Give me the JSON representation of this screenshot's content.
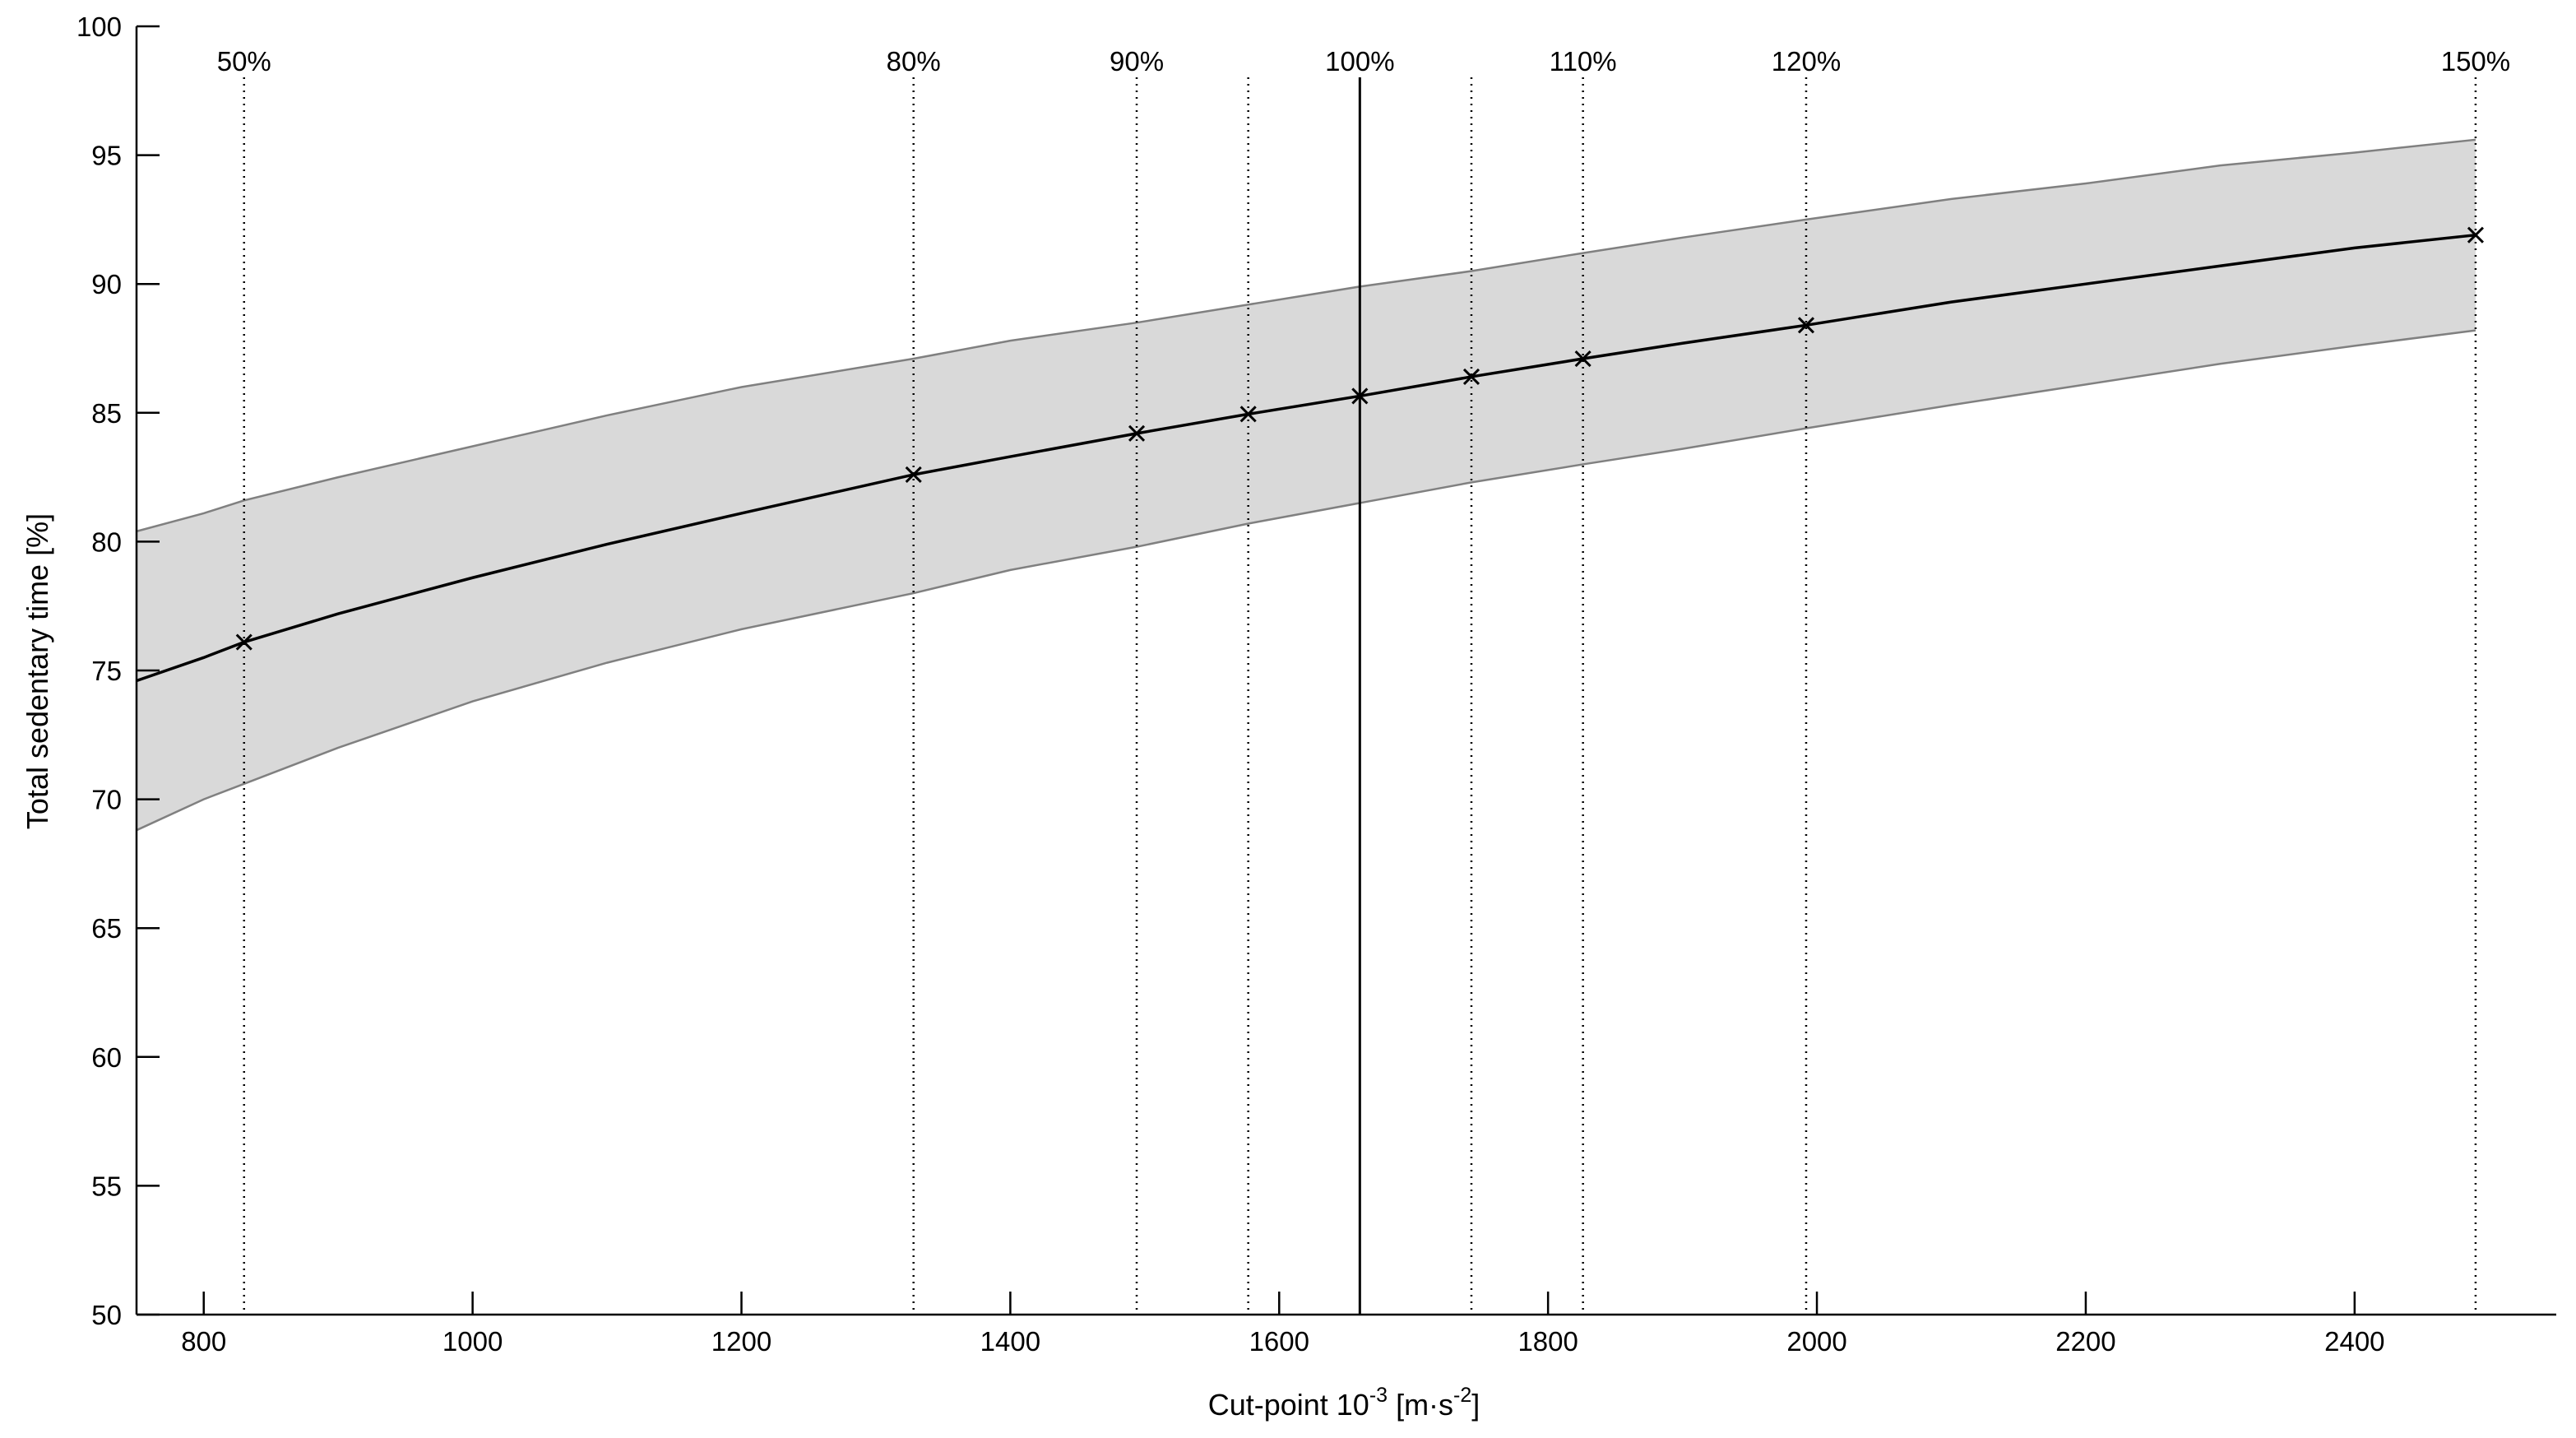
{
  "chart_data": {
    "type": "line",
    "xlabel": "Cut-point 10",
    "xlabel_exponent": "-3",
    "xlabel_units_a": " [m·s",
    "xlabel_units_exponent": "-2",
    "xlabel_units_b": "]",
    "ylabel": "Total sedentary time [%]",
    "xlim": [
      750,
      2550
    ],
    "ylim": [
      50,
      100
    ],
    "xticks": [
      800,
      1000,
      1200,
      1400,
      1600,
      1800,
      2000,
      2200,
      2400
    ],
    "yticks": [
      50,
      55,
      60,
      65,
      70,
      75,
      80,
      85,
      90,
      95,
      100
    ],
    "grid": false,
    "legend": "none",
    "colors": {
      "line": "#000000",
      "band_fill": "#d9d9d9",
      "band_edge": "#808080"
    },
    "reference_line": {
      "x": 1660,
      "style": "solid"
    },
    "vertical_lines": [
      {
        "x": 830,
        "label": "50%"
      },
      {
        "x": 1328,
        "label": "80%"
      },
      {
        "x": 1494,
        "label": "90%"
      },
      {
        "x": 1577,
        "label": ""
      },
      {
        "x": 1743,
        "label": ""
      },
      {
        "x": 1826,
        "label": "110%"
      },
      {
        "x": 1992,
        "label": "120%"
      },
      {
        "x": 2490,
        "label": "150%"
      }
    ],
    "reference_label": "100%",
    "marked_points": [
      {
        "x": 830,
        "y": 76.1
      },
      {
        "x": 1328,
        "y": 82.6
      },
      {
        "x": 1494,
        "y": 84.2
      },
      {
        "x": 1577,
        "y": 84.95
      },
      {
        "x": 1660,
        "y": 85.65
      },
      {
        "x": 1743,
        "y": 86.4
      },
      {
        "x": 1826,
        "y": 87.1
      },
      {
        "x": 1992,
        "y": 88.4
      },
      {
        "x": 2490,
        "y": 91.9
      }
    ],
    "series": [
      {
        "x": [
          750,
          800,
          830,
          900,
          1000,
          1100,
          1200,
          1328,
          1400,
          1494,
          1577,
          1660,
          1743,
          1826,
          1900,
          1992,
          2100,
          2200,
          2300,
          2400,
          2490
        ],
        "y": [
          74.6,
          75.5,
          76.1,
          77.2,
          78.6,
          79.9,
          81.1,
          82.6,
          83.3,
          84.2,
          84.95,
          85.65,
          86.4,
          87.1,
          87.7,
          88.4,
          89.3,
          90.0,
          90.7,
          91.4,
          91.9
        ],
        "lower": [
          68.8,
          70.0,
          70.6,
          72.0,
          73.8,
          75.3,
          76.6,
          78.0,
          78.9,
          79.8,
          80.7,
          81.5,
          82.3,
          83.0,
          83.6,
          84.4,
          85.3,
          86.1,
          86.9,
          87.6,
          88.2
        ],
        "upper": [
          80.4,
          81.1,
          81.6,
          82.5,
          83.7,
          84.9,
          86.0,
          87.1,
          87.8,
          88.5,
          89.2,
          89.9,
          90.5,
          91.2,
          91.8,
          92.5,
          93.3,
          93.9,
          94.6,
          95.1,
          95.6
        ]
      }
    ]
  }
}
